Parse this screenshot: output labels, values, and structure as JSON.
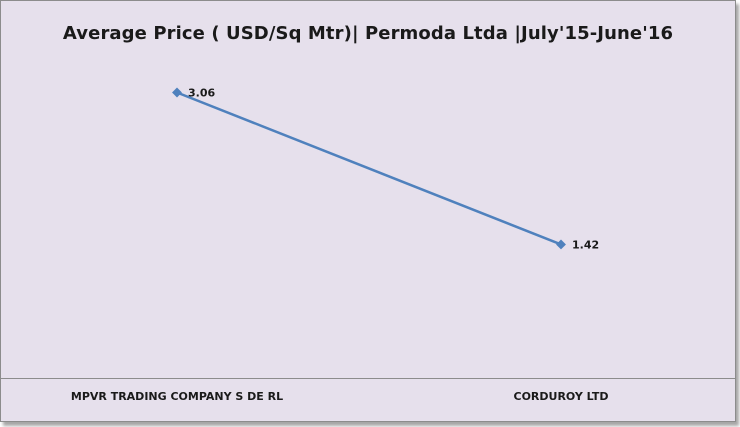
{
  "chart_data": {
    "type": "line",
    "title": "Average Price ( USD/Sq Mtr)| Permoda Ltda |July'15-June'16",
    "categories": [
      "MPVR TRADING COMPANY S DE RL",
      "CORDUROY LTD"
    ],
    "series": [
      {
        "values": [
          3.06,
          1.42
        ]
      }
    ],
    "data_labels": [
      "3.06",
      "1.42"
    ],
    "xlabel": "",
    "ylabel": "",
    "grid": false,
    "legend": "none",
    "colors": {
      "line": "#4f81bd",
      "background": "#e6e0ec"
    }
  }
}
